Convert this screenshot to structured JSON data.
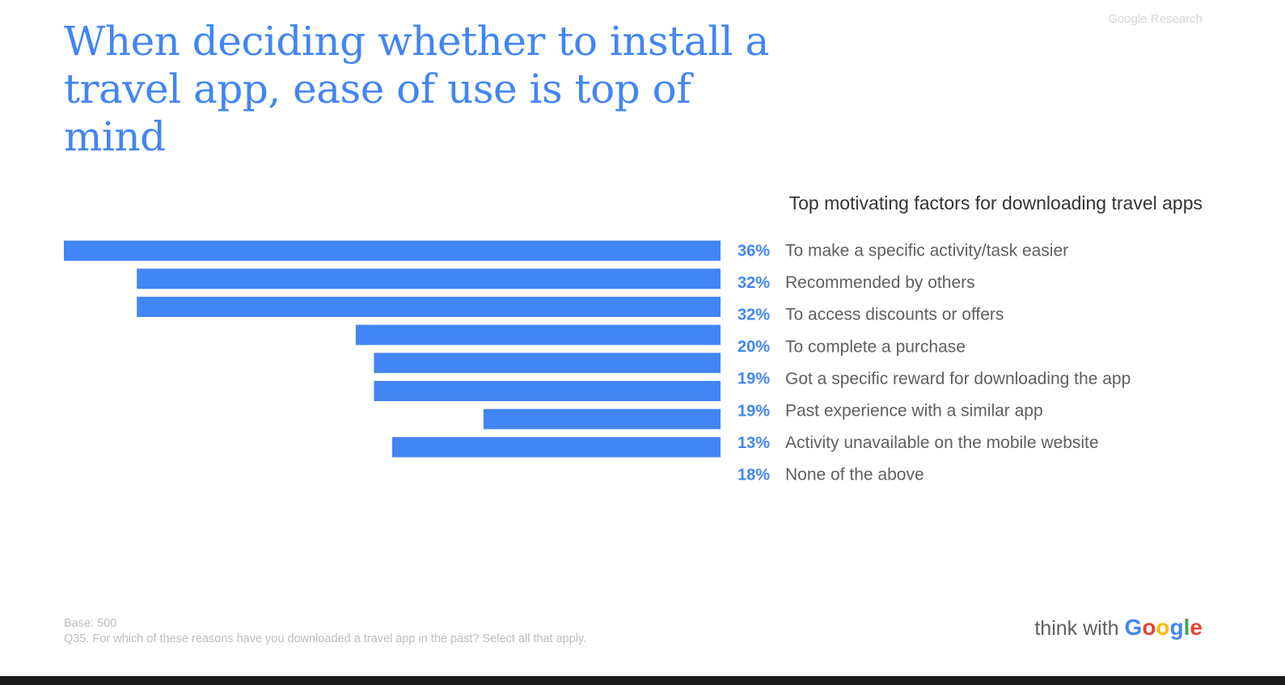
{
  "headline": "When deciding whether to install a travel app, ease of use is top of mind",
  "source_tag": "Google Research",
  "footnote": {
    "base": "Base: 500",
    "question": "Q35. For which of these reasons have you downloaded a travel app in the past? Select all that apply."
  },
  "brand": {
    "prefix": "think with",
    "letters": [
      "G",
      "o",
      "o",
      "g",
      "l",
      "e"
    ],
    "letter_colors": [
      "#4285F4",
      "#EA4335",
      "#FBBC05",
      "#4285F4",
      "#34A853",
      "#EA4335"
    ]
  },
  "colors": {
    "bar": "#4285F4",
    "headline": "#4285F4",
    "value_label": "#4285F4",
    "category_label": "#5f5f5f"
  },
  "chart_data": {
    "type": "bar",
    "orientation": "horizontal",
    "title": "Top motivating factors for downloading travel apps",
    "categories": [
      "To make a specific activity/task easier",
      "Recommended by others",
      "To access discounts or offers",
      "To complete a purchase",
      "Got a specific reward for downloading the app",
      "Past experience with a similar app",
      "Activity unavailable on the mobile website",
      "None of the above"
    ],
    "values": [
      36,
      32,
      32,
      20,
      19,
      19,
      13,
      18
    ],
    "value_labels": [
      "36%",
      "32%",
      "32%",
      "20%",
      "19%",
      "19%",
      "13%",
      "18%"
    ],
    "unit": "%",
    "grid": false,
    "legend": "none"
  }
}
